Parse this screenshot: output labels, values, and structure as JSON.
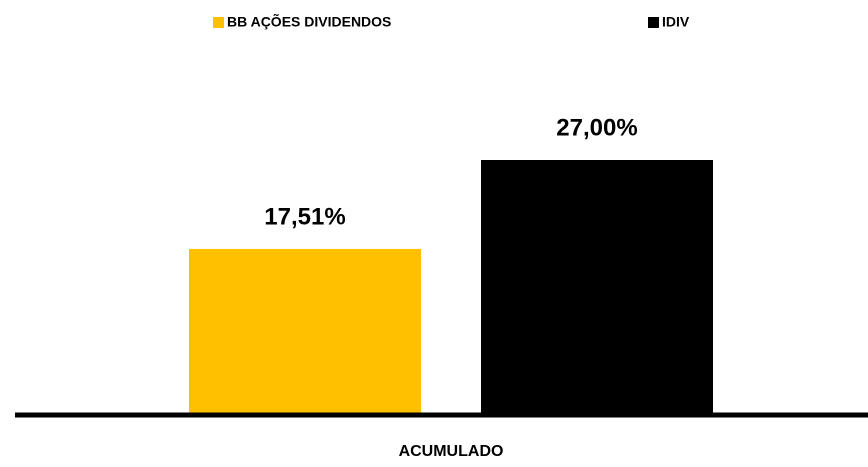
{
  "chart_data": {
    "type": "bar",
    "categories": [
      "ACUMULADO"
    ],
    "series": [
      {
        "name": "BB AÇÕES DIVIDENDOS",
        "color": "#FFC000",
        "values": [
          17.51
        ],
        "value_labels": [
          "17,51%"
        ]
      },
      {
        "name": "IDIV",
        "color": "#000000",
        "values": [
          27.0
        ],
        "value_labels": [
          "27,00%"
        ]
      }
    ]
  }
}
